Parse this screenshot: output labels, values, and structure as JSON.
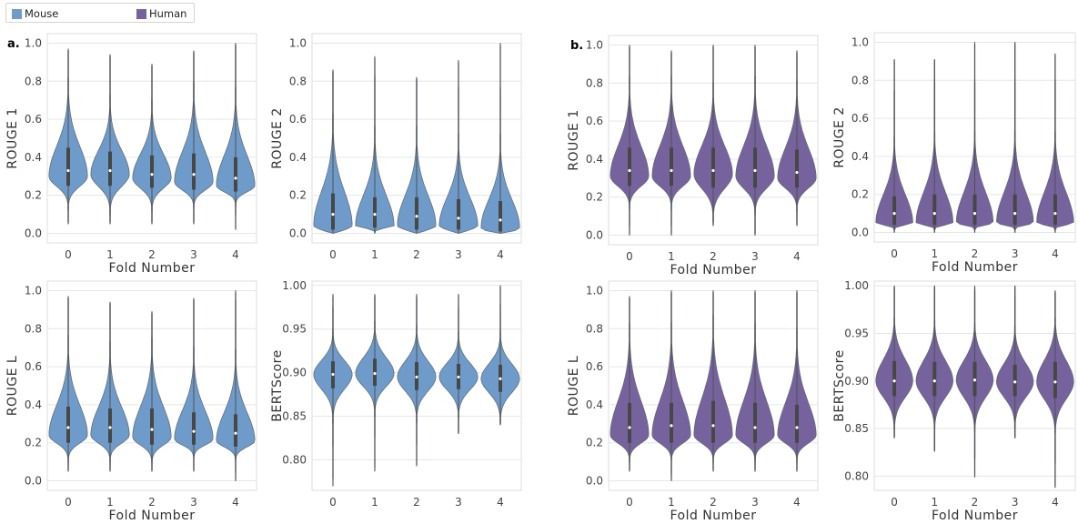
{
  "legend": {
    "items": [
      {
        "label": "Mouse",
        "color": "#6e9bc9"
      },
      {
        "label": "Human",
        "color": "#76639e"
      }
    ]
  },
  "panel_labels": [
    "a.",
    "b."
  ],
  "chart_data": [
    {
      "type": "violin",
      "group": "Mouse",
      "color": "#6e9bc9",
      "xlabel": "Fold Number",
      "ylabel": "ROUGE 1",
      "categories": [
        "0",
        "1",
        "2",
        "3",
        "4"
      ],
      "ylim": [
        -0.05,
        1.05
      ],
      "yticks": [
        "0.0",
        "0.2",
        "0.4",
        "0.6",
        "0.8",
        "1.0"
      ],
      "distributions": [
        {
          "min": 0.05,
          "max": 0.97,
          "q1": 0.25,
          "median": 0.33,
          "q3": 0.45,
          "mode": 0.3
        },
        {
          "min": 0.05,
          "max": 0.94,
          "q1": 0.25,
          "median": 0.33,
          "q3": 0.43,
          "mode": 0.31
        },
        {
          "min": 0.05,
          "max": 0.89,
          "q1": 0.24,
          "median": 0.31,
          "q3": 0.41,
          "mode": 0.29
        },
        {
          "min": 0.05,
          "max": 0.96,
          "q1": 0.23,
          "median": 0.31,
          "q3": 0.42,
          "mode": 0.27
        },
        {
          "min": 0.02,
          "max": 1.0,
          "q1": 0.22,
          "median": 0.29,
          "q3": 0.4,
          "mode": 0.25
        }
      ]
    },
    {
      "type": "violin",
      "group": "Mouse",
      "color": "#6e9bc9",
      "xlabel": "",
      "ylabel": "ROUGE 2",
      "categories": [
        "0",
        "1",
        "2",
        "3",
        "4"
      ],
      "ylim": [
        -0.05,
        1.05
      ],
      "yticks": [
        "0.0",
        "0.2",
        "0.4",
        "0.6",
        "0.8",
        "1.0"
      ],
      "distributions": [
        {
          "min": 0.0,
          "max": 0.86,
          "q1": 0.02,
          "median": 0.1,
          "q3": 0.21,
          "mode": 0.04
        },
        {
          "min": 0.0,
          "max": 0.93,
          "q1": 0.03,
          "median": 0.1,
          "q3": 0.19,
          "mode": 0.04
        },
        {
          "min": 0.0,
          "max": 0.82,
          "q1": 0.02,
          "median": 0.09,
          "q3": 0.19,
          "mode": 0.04
        },
        {
          "min": 0.0,
          "max": 0.91,
          "q1": 0.02,
          "median": 0.08,
          "q3": 0.18,
          "mode": 0.04
        },
        {
          "min": 0.0,
          "max": 1.0,
          "q1": 0.01,
          "median": 0.07,
          "q3": 0.17,
          "mode": 0.03
        }
      ]
    },
    {
      "type": "violin",
      "group": "Mouse",
      "color": "#6e9bc9",
      "xlabel": "Fold Number",
      "ylabel": "ROUGE L",
      "categories": [
        "0",
        "1",
        "2",
        "3",
        "4"
      ],
      "ylim": [
        -0.05,
        1.05
      ],
      "yticks": [
        "0.0",
        "0.2",
        "0.4",
        "0.6",
        "0.8",
        "1.0"
      ],
      "distributions": [
        {
          "min": 0.05,
          "max": 0.97,
          "q1": 0.2,
          "median": 0.28,
          "q3": 0.39,
          "mode": 0.24
        },
        {
          "min": 0.05,
          "max": 0.94,
          "q1": 0.2,
          "median": 0.28,
          "q3": 0.38,
          "mode": 0.24
        },
        {
          "min": 0.05,
          "max": 0.89,
          "q1": 0.19,
          "median": 0.27,
          "q3": 0.38,
          "mode": 0.23
        },
        {
          "min": 0.05,
          "max": 0.96,
          "q1": 0.19,
          "median": 0.26,
          "q3": 0.36,
          "mode": 0.22
        },
        {
          "min": 0.0,
          "max": 1.0,
          "q1": 0.18,
          "median": 0.25,
          "q3": 0.35,
          "mode": 0.21
        }
      ]
    },
    {
      "type": "violin",
      "group": "Mouse",
      "color": "#6e9bc9",
      "xlabel": "",
      "ylabel": "BERTScore",
      "categories": [
        "0",
        "1",
        "2",
        "3",
        "4"
      ],
      "ylim": [
        0.765,
        1.005
      ],
      "yticks": [
        "0.80",
        "0.85",
        "0.90",
        "0.95",
        "1.00"
      ],
      "distributions": [
        {
          "min": 0.77,
          "max": 0.99,
          "q1": 0.882,
          "median": 0.898,
          "q3": 0.913,
          "mode": 0.898
        },
        {
          "min": 0.787,
          "max": 0.99,
          "q1": 0.885,
          "median": 0.899,
          "q3": 0.916,
          "mode": 0.899
        },
        {
          "min": 0.793,
          "max": 0.99,
          "q1": 0.88,
          "median": 0.895,
          "q3": 0.912,
          "mode": 0.895
        },
        {
          "min": 0.83,
          "max": 0.99,
          "q1": 0.881,
          "median": 0.895,
          "q3": 0.91,
          "mode": 0.895
        },
        {
          "min": 0.84,
          "max": 1.0,
          "q1": 0.878,
          "median": 0.893,
          "q3": 0.909,
          "mode": 0.893
        }
      ]
    },
    {
      "type": "violin",
      "group": "Human",
      "color": "#76639e",
      "xlabel": "Fold Number",
      "ylabel": "ROUGE 1",
      "categories": [
        "0",
        "1",
        "2",
        "3",
        "4"
      ],
      "ylim": [
        -0.05,
        1.05
      ],
      "yticks": [
        "0.0",
        "0.2",
        "0.4",
        "0.6",
        "0.8",
        "1.0"
      ],
      "distributions": [
        {
          "min": 0.0,
          "max": 1.0,
          "q1": 0.26,
          "median": 0.34,
          "q3": 0.46,
          "mode": 0.31
        },
        {
          "min": 0.0,
          "max": 0.97,
          "q1": 0.26,
          "median": 0.34,
          "q3": 0.46,
          "mode": 0.31
        },
        {
          "min": 0.05,
          "max": 1.0,
          "q1": 0.25,
          "median": 0.34,
          "q3": 0.46,
          "mode": 0.32
        },
        {
          "min": 0.0,
          "max": 1.0,
          "q1": 0.25,
          "median": 0.34,
          "q3": 0.46,
          "mode": 0.31
        },
        {
          "min": 0.05,
          "max": 0.97,
          "q1": 0.25,
          "median": 0.33,
          "q3": 0.45,
          "mode": 0.3
        }
      ]
    },
    {
      "type": "violin",
      "group": "Human",
      "color": "#76639e",
      "xlabel": "Fold Number",
      "ylabel": "ROUGE 2",
      "categories": [
        "0",
        "1",
        "2",
        "3",
        "4"
      ],
      "ylim": [
        -0.05,
        1.05
      ],
      "yticks": [
        "0.0",
        "0.2",
        "0.4",
        "0.6",
        "0.8",
        "1.0"
      ],
      "distributions": [
        {
          "min": 0.0,
          "max": 0.91,
          "q1": 0.04,
          "median": 0.1,
          "q3": 0.19,
          "mode": 0.05
        },
        {
          "min": 0.0,
          "max": 0.91,
          "q1": 0.04,
          "median": 0.1,
          "q3": 0.2,
          "mode": 0.05
        },
        {
          "min": 0.0,
          "max": 1.0,
          "q1": 0.04,
          "median": 0.1,
          "q3": 0.2,
          "mode": 0.05
        },
        {
          "min": 0.0,
          "max": 1.0,
          "q1": 0.04,
          "median": 0.1,
          "q3": 0.2,
          "mode": 0.05
        },
        {
          "min": 0.0,
          "max": 0.94,
          "q1": 0.04,
          "median": 0.1,
          "q3": 0.2,
          "mode": 0.05
        }
      ]
    },
    {
      "type": "violin",
      "group": "Human",
      "color": "#76639e",
      "xlabel": "Fold Number",
      "ylabel": "ROUGE L",
      "categories": [
        "0",
        "1",
        "2",
        "3",
        "4"
      ],
      "ylim": [
        -0.05,
        1.05
      ],
      "yticks": [
        "0.0",
        "0.2",
        "0.4",
        "0.6",
        "0.8",
        "1.0"
      ],
      "distributions": [
        {
          "min": 0.05,
          "max": 0.97,
          "q1": 0.2,
          "median": 0.28,
          "q3": 0.41,
          "mode": 0.24
        },
        {
          "min": 0.0,
          "max": 1.0,
          "q1": 0.2,
          "median": 0.29,
          "q3": 0.41,
          "mode": 0.24
        },
        {
          "min": 0.05,
          "max": 1.0,
          "q1": 0.2,
          "median": 0.29,
          "q3": 0.42,
          "mode": 0.24
        },
        {
          "min": 0.05,
          "max": 1.0,
          "q1": 0.2,
          "median": 0.28,
          "q3": 0.41,
          "mode": 0.24
        },
        {
          "min": 0.05,
          "max": 1.0,
          "q1": 0.2,
          "median": 0.28,
          "q3": 0.4,
          "mode": 0.24
        }
      ]
    },
    {
      "type": "violin",
      "group": "Human",
      "color": "#76639e",
      "xlabel": "Fold Number",
      "ylabel": "BERTScore",
      "categories": [
        "0",
        "1",
        "2",
        "3",
        "4"
      ],
      "ylim": [
        0.785,
        1.005
      ],
      "yticks": [
        "0.80",
        "0.85",
        "0.90",
        "0.95",
        "1.00"
      ],
      "distributions": [
        {
          "min": 0.84,
          "max": 1.0,
          "q1": 0.884,
          "median": 0.9,
          "q3": 0.921,
          "mode": 0.9
        },
        {
          "min": 0.826,
          "max": 1.0,
          "q1": 0.884,
          "median": 0.9,
          "q3": 0.92,
          "mode": 0.9
        },
        {
          "min": 0.799,
          "max": 1.0,
          "q1": 0.884,
          "median": 0.901,
          "q3": 0.92,
          "mode": 0.901
        },
        {
          "min": 0.84,
          "max": 1.0,
          "q1": 0.884,
          "median": 0.899,
          "q3": 0.917,
          "mode": 0.899
        },
        {
          "min": 0.788,
          "max": 0.995,
          "q1": 0.882,
          "median": 0.899,
          "q3": 0.92,
          "mode": 0.899
        }
      ]
    }
  ]
}
